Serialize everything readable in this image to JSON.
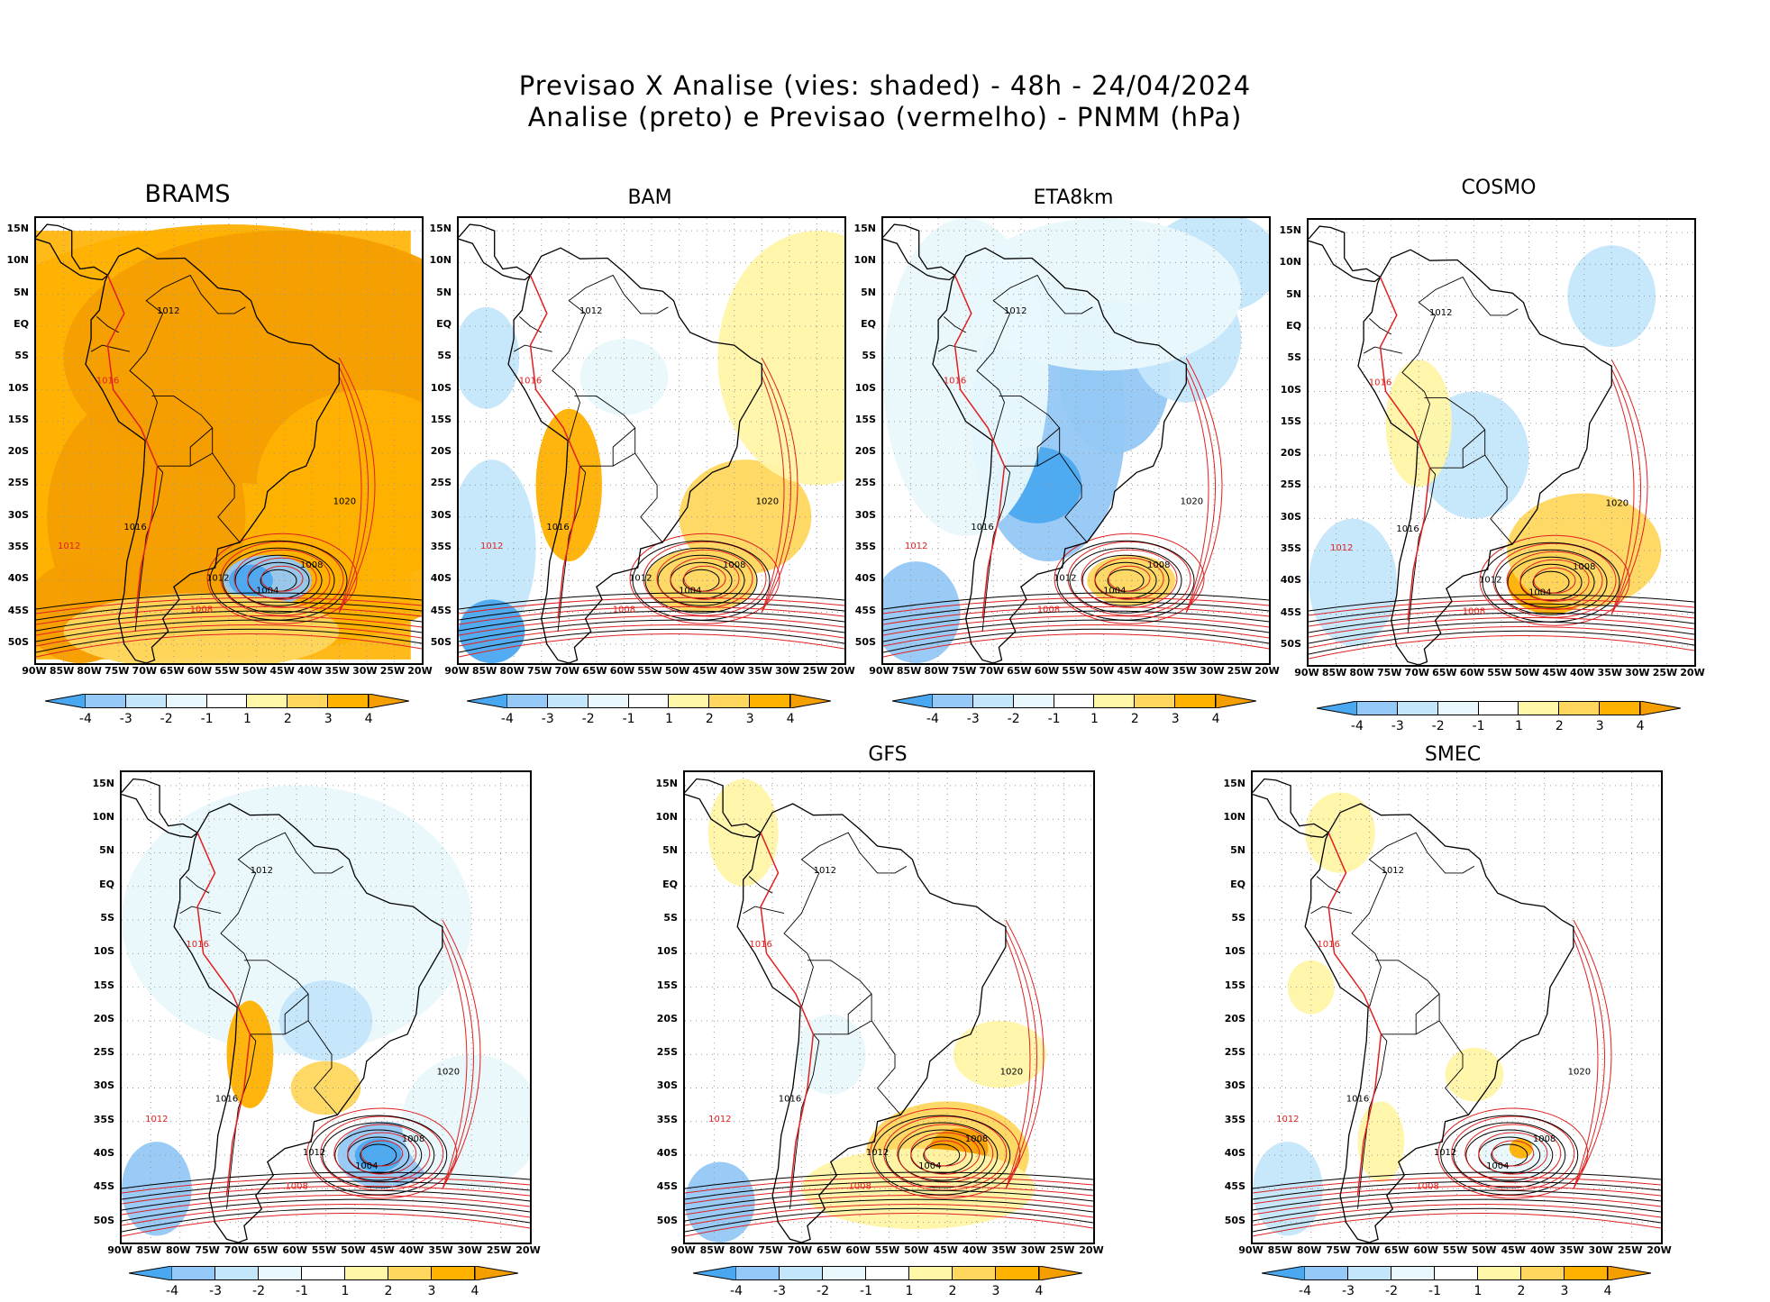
{
  "title_line1": "Previsao X Analise (vies: shaded) - 48h - 24/04/2024",
  "title_line2": "Analise (preto) e Previsao (vermelho) - PNMM (hPa)",
  "latitude_labels": [
    "15N",
    "10N",
    "5N",
    "EQ",
    "5S",
    "10S",
    "15S",
    "20S",
    "25S",
    "30S",
    "35S",
    "40S",
    "45S",
    "50S"
  ],
  "longitude_labels": [
    "90W",
    "85W",
    "80W",
    "75W",
    "70W",
    "65W",
    "60W",
    "55W",
    "50W",
    "45W",
    "40W",
    "35W",
    "30W",
    "25W",
    "20W"
  ],
  "colorbar": {
    "ticks": [
      "-4",
      "-3",
      "-2",
      "-1",
      "1",
      "2",
      "3",
      "4"
    ],
    "colors": [
      "#4aa8f0",
      "#94c8f6",
      "#c4e6fb",
      "#e9f8fc",
      "#ffffff",
      "#fff6a8",
      "#ffd75e",
      "#ffb100",
      "#f59e00"
    ]
  },
  "colors": {
    "analysis_contour": "#000000",
    "forecast_contour": "#e02020",
    "coast": "#000000"
  },
  "panels": [
    {
      "name": "BRAMS",
      "bias": "warm-strong"
    },
    {
      "name": "BAM",
      "bias": "mixed"
    },
    {
      "name": "ETA8km",
      "bias": "cold"
    },
    {
      "name": "COSMO",
      "bias": "mixed"
    },
    {
      "name": "",
      "bias": "mixed"
    },
    {
      "name": "GFS",
      "bias": "weak"
    },
    {
      "name": "SMEC",
      "bias": "weak"
    }
  ],
  "contour_labels": [
    {
      "text": "1016",
      "color": "red"
    },
    {
      "text": "1012",
      "color": "black"
    },
    {
      "text": "1008",
      "color": "black"
    },
    {
      "text": "1004",
      "color": "black"
    },
    {
      "text": "1020",
      "color": "black"
    },
    {
      "text": "1012",
      "color": "red"
    },
    {
      "text": "1016",
      "color": "black"
    },
    {
      "text": "1008",
      "color": "red"
    }
  ]
}
